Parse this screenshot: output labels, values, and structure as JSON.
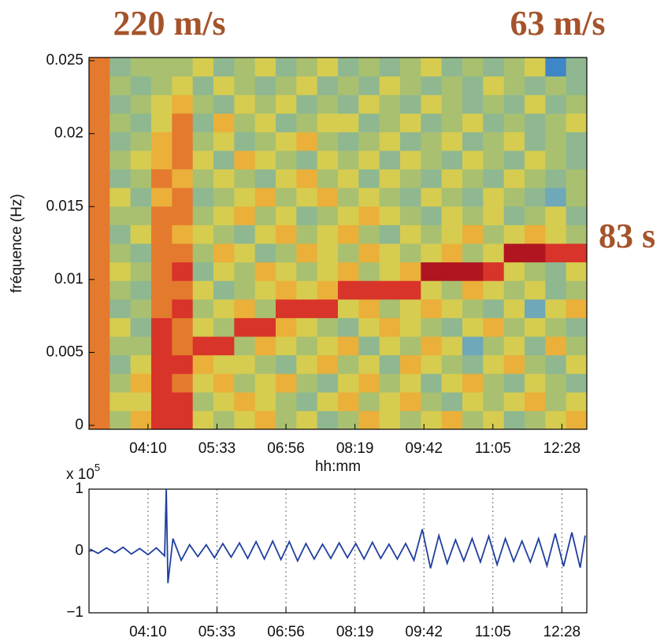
{
  "chart_data": [
    {
      "type": "heatmap",
      "annotations": [
        "220 m/s",
        "63 m/s",
        "83 s"
      ],
      "ylabel": "fréquence (Hz)",
      "xlabel": "hh:mm",
      "xlim": [
        179,
        778
      ],
      "ylim": [
        -0.00027,
        0.02522
      ],
      "xticks": [
        {
          "value": 250,
          "label": "04:10"
        },
        {
          "value": 333,
          "label": "05:33"
        },
        {
          "value": 416,
          "label": "06:56"
        },
        {
          "value": 499,
          "label": "08:19"
        },
        {
          "value": 582,
          "label": "09:42"
        },
        {
          "value": 665,
          "label": "11:05"
        },
        {
          "value": 748,
          "label": "12:28"
        }
      ],
      "yticks": [
        0,
        0.005,
        0.01,
        0.015,
        0.02,
        0.025
      ],
      "colors": [
        "#1f4fa0",
        "#3f86c8",
        "#6fa8b8",
        "#8fb890",
        "#a9c070",
        "#d6cc50",
        "#eab03a",
        "#e47a2e",
        "#d8342a",
        "#b01520"
      ],
      "z": [
        [
          7,
          4,
          6,
          8,
          8,
          5,
          4,
          5,
          6,
          4,
          5,
          3,
          4,
          6,
          5,
          4,
          5,
          6,
          4,
          5,
          3,
          4,
          5,
          6
        ],
        [
          7,
          5,
          5,
          8,
          8,
          4,
          5,
          6,
          5,
          4,
          3,
          5,
          6,
          4,
          5,
          6,
          4,
          3,
          5,
          4,
          5,
          6,
          4,
          5
        ],
        [
          7,
          4,
          6,
          8,
          7,
          5,
          6,
          4,
          5,
          6,
          4,
          3,
          5,
          6,
          4,
          5,
          3,
          5,
          6,
          4,
          3,
          5,
          4,
          3
        ],
        [
          7,
          3,
          5,
          8,
          8,
          6,
          5,
          5,
          4,
          3,
          5,
          6,
          4,
          5,
          3,
          6,
          5,
          4,
          3,
          5,
          6,
          4,
          3,
          5
        ],
        [
          7,
          4,
          4,
          8,
          7,
          8,
          8,
          4,
          6,
          5,
          4,
          5,
          6,
          3,
          5,
          4,
          6,
          5,
          2,
          4,
          5,
          3,
          6,
          4
        ],
        [
          7,
          5,
          3,
          8,
          7,
          5,
          4,
          8,
          8,
          6,
          5,
          4,
          3,
          5,
          6,
          5,
          4,
          3,
          5,
          6,
          4,
          5,
          4,
          3
        ],
        [
          7,
          3,
          4,
          7,
          8,
          4,
          5,
          6,
          4,
          8,
          8,
          8,
          5,
          6,
          4,
          5,
          6,
          5,
          4,
          3,
          5,
          2,
          5,
          6
        ],
        [
          7,
          4,
          3,
          7,
          7,
          5,
          3,
          4,
          5,
          6,
          5,
          6,
          8,
          8,
          8,
          8,
          5,
          4,
          6,
          5,
          4,
          5,
          3,
          4
        ],
        [
          7,
          5,
          4,
          7,
          8,
          3,
          5,
          4,
          6,
          5,
          4,
          5,
          6,
          4,
          5,
          6,
          9,
          9,
          9,
          8,
          5,
          4,
          3,
          5
        ],
        [
          7,
          4,
          3,
          7,
          7,
          4,
          6,
          5,
          3,
          4,
          6,
          5,
          4,
          6,
          5,
          4,
          5,
          6,
          4,
          5,
          9,
          9,
          8,
          8
        ],
        [
          7,
          3,
          5,
          7,
          6,
          5,
          4,
          3,
          5,
          6,
          4,
          5,
          6,
          4,
          3,
          5,
          4,
          5,
          6,
          4,
          5,
          6,
          5,
          4
        ],
        [
          7,
          4,
          4,
          7,
          7,
          4,
          5,
          6,
          4,
          5,
          3,
          4,
          5,
          6,
          5,
          4,
          3,
          5,
          4,
          5,
          3,
          4,
          5,
          3
        ],
        [
          7,
          5,
          3,
          6,
          7,
          3,
          4,
          5,
          6,
          4,
          5,
          6,
          4,
          5,
          4,
          3,
          5,
          4,
          3,
          5,
          4,
          3,
          2,
          4
        ],
        [
          7,
          3,
          4,
          7,
          6,
          4,
          5,
          4,
          3,
          5,
          6,
          4,
          5,
          3,
          5,
          4,
          3,
          5,
          4,
          3,
          5,
          4,
          3,
          4
        ],
        [
          7,
          4,
          5,
          6,
          7,
          5,
          3,
          6,
          5,
          4,
          3,
          5,
          4,
          5,
          3,
          5,
          4,
          3,
          5,
          4,
          3,
          5,
          4,
          3
        ],
        [
          7,
          3,
          4,
          6,
          7,
          4,
          5,
          3,
          4,
          5,
          6,
          4,
          3,
          4,
          5,
          3,
          4,
          5,
          3,
          4,
          5,
          3,
          4,
          3
        ],
        [
          7,
          4,
          3,
          5,
          7,
          3,
          6,
          4,
          5,
          3,
          4,
          5,
          5,
          3,
          4,
          5,
          3,
          4,
          5,
          3,
          4,
          3,
          4,
          5
        ],
        [
          7,
          3,
          4,
          5,
          6,
          4,
          3,
          5,
          4,
          5,
          3,
          4,
          3,
          5,
          4,
          3,
          5,
          4,
          3,
          4,
          3,
          5,
          3,
          4
        ],
        [
          7,
          4,
          3,
          4,
          5,
          3,
          5,
          4,
          3,
          4,
          5,
          3,
          4,
          3,
          5,
          4,
          3,
          4,
          3,
          5,
          4,
          3,
          4,
          3
        ],
        [
          7,
          3,
          4,
          4,
          4,
          5,
          3,
          4,
          5,
          3,
          4,
          5,
          3,
          4,
          3,
          4,
          5,
          3,
          4,
          3,
          4,
          5,
          1,
          3
        ]
      ]
    },
    {
      "type": "line",
      "y_multiplier": {
        "base": "x 10",
        "exponent": "5"
      },
      "color": "#1f3f9f",
      "grid": true,
      "xlim": [
        179,
        778
      ],
      "ylim": [
        -1,
        1
      ],
      "xticks": [
        {
          "value": 250,
          "label": "04:10"
        },
        {
          "value": 333,
          "label": "05:33"
        },
        {
          "value": 416,
          "label": "06:56"
        },
        {
          "value": 499,
          "label": "08:19"
        },
        {
          "value": 582,
          "label": "09:42"
        },
        {
          "value": 665,
          "label": "11:05"
        },
        {
          "value": 748,
          "label": "12:28"
        }
      ],
      "yticks": [
        1,
        0,
        {
          "value": -1,
          "label": "−1"
        }
      ],
      "x": [
        180,
        190,
        200,
        210,
        220,
        230,
        240,
        250,
        260,
        270,
        272,
        274,
        280,
        290,
        300,
        310,
        320,
        330,
        340,
        350,
        360,
        370,
        380,
        390,
        400,
        410,
        420,
        430,
        440,
        450,
        460,
        470,
        480,
        490,
        500,
        510,
        520,
        530,
        540,
        550,
        560,
        570,
        580,
        590,
        600,
        610,
        620,
        630,
        640,
        650,
        660,
        670,
        680,
        690,
        700,
        710,
        720,
        730,
        740,
        750,
        760,
        770,
        776
      ],
      "values": [
        0.03,
        -0.04,
        0.05,
        -0.03,
        0.06,
        -0.05,
        0.04,
        -0.06,
        0.05,
        -0.08,
        1.0,
        -0.52,
        0.2,
        -0.15,
        0.1,
        -0.09,
        0.1,
        -0.11,
        0.12,
        -0.1,
        0.13,
        -0.12,
        0.15,
        -0.13,
        0.16,
        -0.14,
        0.15,
        -0.16,
        0.12,
        -0.13,
        0.11,
        -0.12,
        0.13,
        -0.11,
        0.12,
        -0.13,
        0.14,
        -0.12,
        0.11,
        -0.13,
        0.12,
        -0.15,
        0.35,
        -0.28,
        0.25,
        -0.2,
        0.18,
        -0.16,
        0.2,
        -0.18,
        0.24,
        -0.22,
        0.2,
        -0.17,
        0.16,
        -0.18,
        0.2,
        -0.24,
        0.28,
        -0.25,
        0.3,
        -0.27,
        0.25
      ]
    }
  ]
}
